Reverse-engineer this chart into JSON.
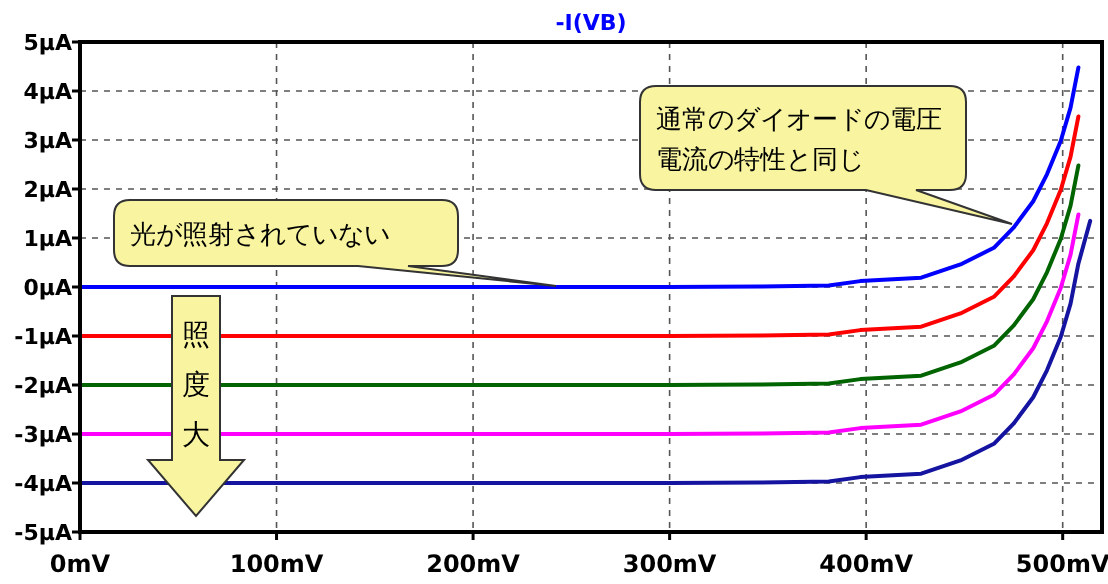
{
  "chart_data": {
    "type": "line",
    "title": "-I(VB)",
    "x": [
      0,
      100,
      200,
      300,
      346,
      381,
      397,
      428,
      448,
      465,
      475,
      485,
      492,
      499,
      504,
      508
    ],
    "series": [
      {
        "color": "#0000ff",
        "values": [
          0,
          0,
          0,
          0,
          0.01,
          0.03,
          0.12,
          0.19,
          0.46,
          0.8,
          1.21,
          1.75,
          2.3,
          2.98,
          3.66,
          4.48
        ]
      },
      {
        "color": "#ff0000",
        "values": [
          -1,
          -1,
          -1,
          -1,
          -0.99,
          -0.97,
          -0.88,
          -0.81,
          -0.54,
          -0.2,
          0.21,
          0.75,
          1.3,
          1.98,
          2.66,
          3.48
        ]
      },
      {
        "color": "#006400",
        "values": [
          -2,
          -2,
          -2,
          -2,
          -1.99,
          -1.97,
          -1.88,
          -1.81,
          -1.54,
          -1.2,
          -0.79,
          -0.25,
          0.3,
          0.98,
          1.66,
          2.48
        ]
      },
      {
        "color": "#ff00ff",
        "values": [
          -3,
          -3,
          -3,
          -3,
          -2.99,
          -2.97,
          -2.88,
          -2.81,
          -2.54,
          -2.2,
          -1.79,
          -1.25,
          -0.7,
          -0.02,
          0.66,
          1.48
        ]
      },
      {
        "color": "#1414a0",
        "x": [
          0,
          100,
          200,
          300,
          346,
          381,
          397,
          428,
          448,
          465,
          475,
          485,
          492,
          499,
          504,
          508,
          514
        ],
        "values": [
          -4,
          -4,
          -4,
          -4,
          -3.99,
          -3.97,
          -3.88,
          -3.81,
          -3.54,
          -3.2,
          -2.79,
          -2.25,
          -1.7,
          -1.02,
          -0.34,
          0.48,
          1.35
        ]
      }
    ],
    "xlim": [
      0,
      520
    ],
    "ylim": [
      -5,
      5
    ],
    "xticks": [
      {
        "value": 0,
        "label": "0mV"
      },
      {
        "value": 100,
        "label": "100mV"
      },
      {
        "value": 200,
        "label": "200mV"
      },
      {
        "value": 300,
        "label": "300mV"
      },
      {
        "value": 400,
        "label": "400mV"
      },
      {
        "value": 500,
        "label": "500mV"
      }
    ],
    "yticks": [
      {
        "value": 5,
        "label": "5µA"
      },
      {
        "value": 4,
        "label": "4µA"
      },
      {
        "value": 3,
        "label": "3µA"
      },
      {
        "value": 2,
        "label": "2µA"
      },
      {
        "value": 1,
        "label": "1µA"
      },
      {
        "value": 0,
        "label": "0µA"
      },
      {
        "value": -1,
        "label": "-1µA"
      },
      {
        "value": -2,
        "label": "-2µA"
      },
      {
        "value": -3,
        "label": "-3µA"
      },
      {
        "value": -4,
        "label": "-4µA"
      },
      {
        "value": -5,
        "label": "-5µA"
      }
    ],
    "grid": true,
    "line_style": "solid",
    "annotations": [
      "光が照射されていない",
      "通常のダイオードの電圧電流の特性と同じ",
      "照度大"
    ]
  }
}
